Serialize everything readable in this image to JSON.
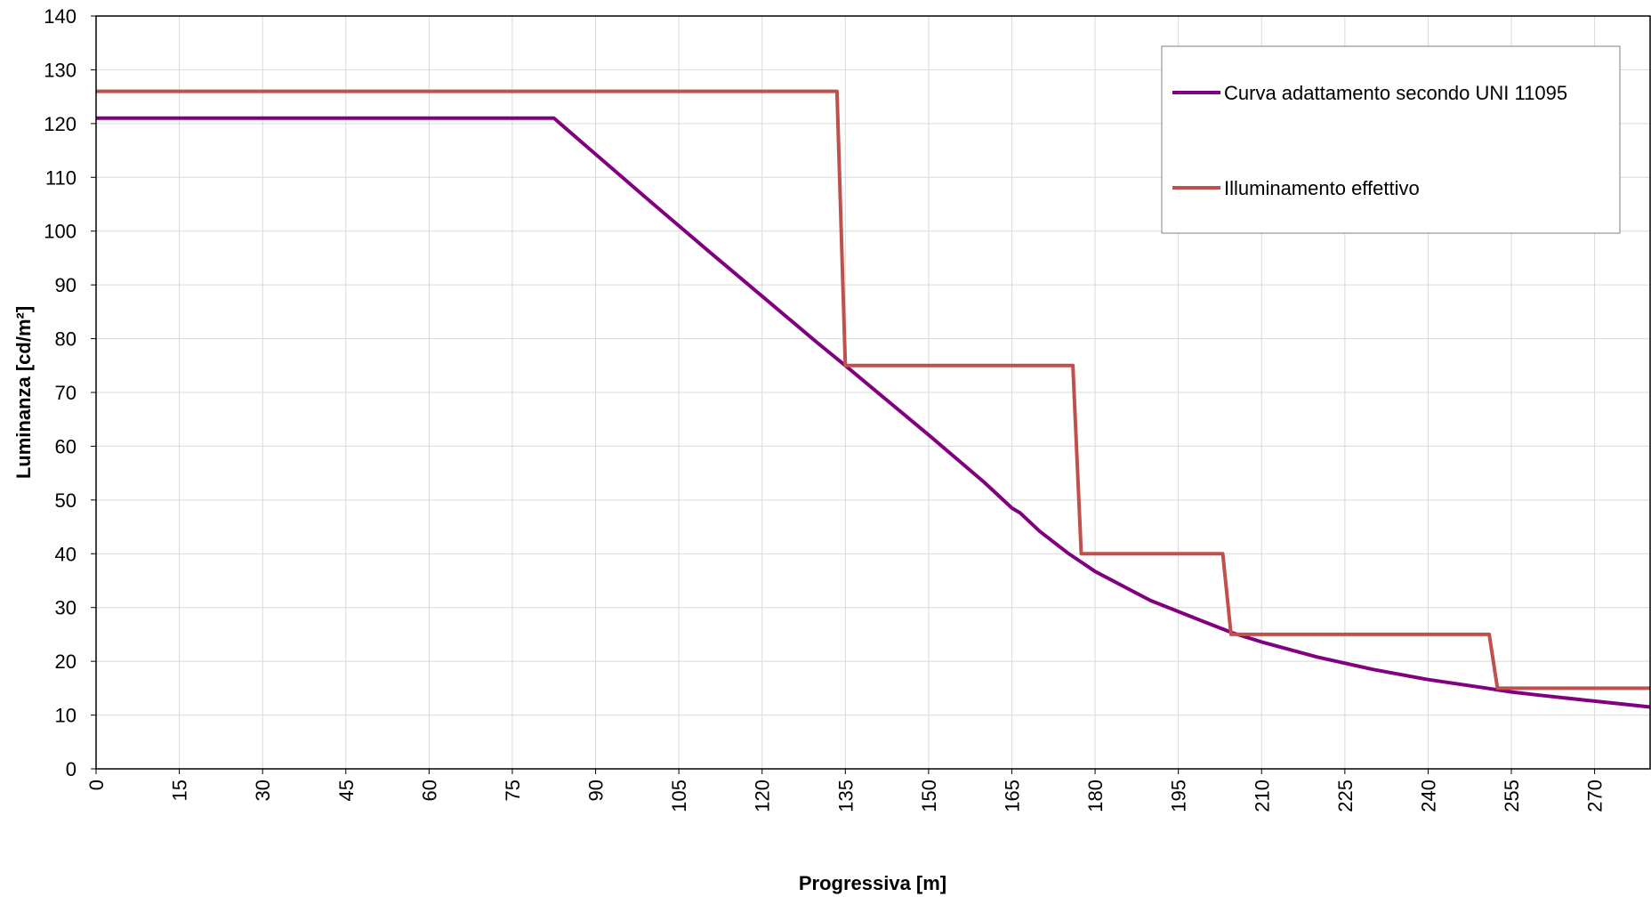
{
  "chart_data": {
    "type": "line",
    "title": "",
    "xlabel": "Progressiva [m]",
    "ylabel": "Luminanza [cd/m²]",
    "xlim": [
      0,
      280
    ],
    "ylim": [
      0,
      140
    ],
    "x_ticks": [
      "0",
      "15",
      "30",
      "45",
      "60",
      "75",
      "90",
      "105",
      "120",
      "135",
      "150",
      "165",
      "180",
      "195",
      "210",
      "225",
      "240",
      "255",
      "270"
    ],
    "y_ticks": [
      "0",
      "10",
      "20",
      "30",
      "40",
      "50",
      "60",
      "70",
      "80",
      "90",
      "100",
      "110",
      "120",
      "130",
      "140"
    ],
    "grid": true,
    "legend_position": "top-right",
    "series": [
      {
        "name": "Curva adattamento secondo UNI 11095",
        "color": "#800080",
        "points": [
          [
            0,
            121
          ],
          [
            82.5,
            121
          ],
          [
            90,
            114.3
          ],
          [
            100,
            105.4
          ],
          [
            110,
            96.6
          ],
          [
            120,
            87.9
          ],
          [
            130,
            79.2
          ],
          [
            135,
            75
          ],
          [
            140,
            70.7
          ],
          [
            150,
            62.1
          ],
          [
            160,
            53.3
          ],
          [
            165,
            48.5
          ],
          [
            166.5,
            47.6
          ],
          [
            170,
            44.2
          ],
          [
            175,
            40.2
          ],
          [
            180,
            36.7
          ],
          [
            190,
            31.3
          ],
          [
            200,
            27.2
          ],
          [
            205,
            25.2
          ],
          [
            210,
            23.6
          ],
          [
            220,
            20.8
          ],
          [
            230,
            18.5
          ],
          [
            240,
            16.6
          ],
          [
            250,
            15.1
          ],
          [
            255,
            14.3
          ],
          [
            260,
            13.7
          ],
          [
            270,
            12.6
          ],
          [
            280,
            11.5
          ]
        ]
      },
      {
        "name": "Illuminamento effettivo",
        "color": "#C0504D",
        "points": [
          [
            0,
            126
          ],
          [
            133.5,
            126
          ],
          [
            135,
            75
          ],
          [
            176,
            75
          ],
          [
            177.5,
            40
          ],
          [
            203,
            40
          ],
          [
            204.5,
            25
          ],
          [
            251,
            25
          ],
          [
            252.5,
            15
          ],
          [
            280,
            15
          ]
        ]
      }
    ]
  }
}
